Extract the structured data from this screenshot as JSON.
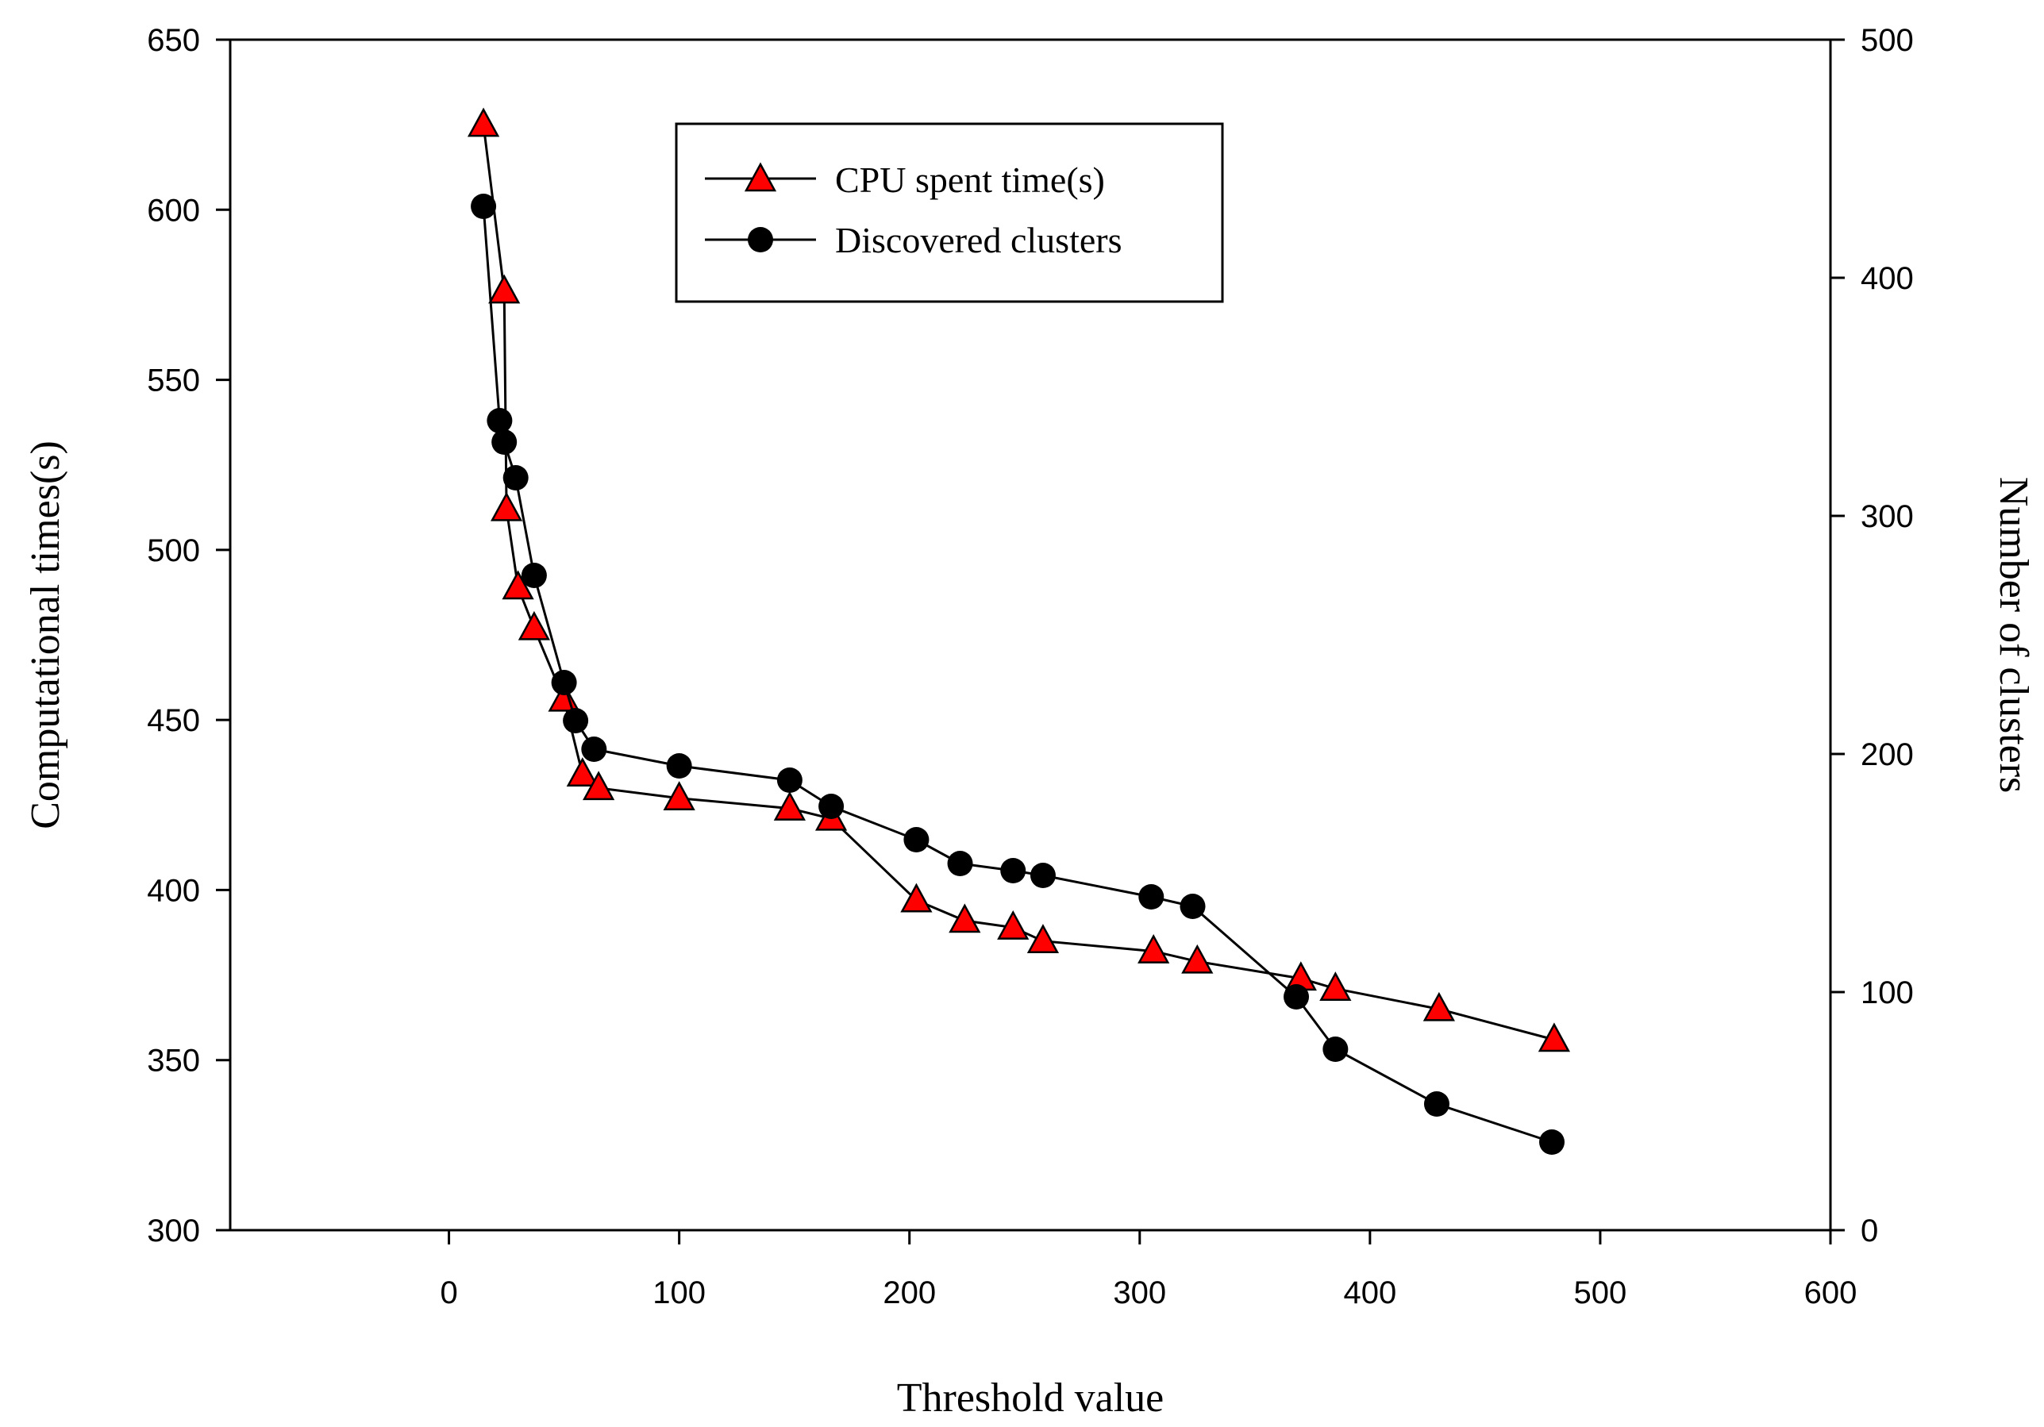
{
  "chart_data": {
    "type": "line",
    "title": "",
    "xlabel": "Threshold value",
    "ylabel_left": "Computational times(s)",
    "ylabel_right": "Number of clusters",
    "xlim": [
      -95,
      600
    ],
    "ylim_left": [
      300,
      650
    ],
    "ylim_right": [
      0,
      500
    ],
    "x_ticks": [
      0,
      100,
      200,
      300,
      400,
      500,
      600
    ],
    "y_left_ticks": [
      300,
      350,
      400,
      450,
      500,
      550,
      600,
      650
    ],
    "y_right_ticks": [
      0,
      100,
      200,
      300,
      400,
      500
    ],
    "grid": false,
    "legend_position": "top-center",
    "series": [
      {
        "name": "CPU spent time(s)",
        "axis": "left",
        "marker": "triangle",
        "marker_color": "#ff0000",
        "points": [
          [
            15,
            625
          ],
          [
            24,
            576
          ],
          [
            25,
            512
          ],
          [
            30,
            489
          ],
          [
            37,
            477
          ],
          [
            50,
            456
          ],
          [
            58,
            434
          ],
          [
            65,
            430
          ],
          [
            100,
            427
          ],
          [
            148,
            424
          ],
          [
            166,
            421
          ],
          [
            203,
            397
          ],
          [
            224,
            391
          ],
          [
            245,
            389
          ],
          [
            258,
            385
          ],
          [
            306,
            382
          ],
          [
            325,
            379
          ],
          [
            370,
            374
          ],
          [
            385,
            371
          ],
          [
            430,
            365
          ],
          [
            480,
            356
          ]
        ]
      },
      {
        "name": "Discovered clusters",
        "axis": "right",
        "marker": "circle",
        "marker_color": "#000000",
        "points": [
          [
            15,
            430
          ],
          [
            22,
            340
          ],
          [
            24,
            331
          ],
          [
            29,
            316
          ],
          [
            37,
            275
          ],
          [
            50,
            230
          ],
          [
            55,
            214
          ],
          [
            63,
            202
          ],
          [
            100,
            195
          ],
          [
            148,
            189
          ],
          [
            166,
            178
          ],
          [
            203,
            164
          ],
          [
            222,
            154
          ],
          [
            245,
            151
          ],
          [
            258,
            149
          ],
          [
            305,
            140
          ],
          [
            323,
            136
          ],
          [
            368,
            98
          ],
          [
            385,
            76
          ],
          [
            429,
            53
          ],
          [
            479,
            37
          ]
        ]
      }
    ]
  }
}
